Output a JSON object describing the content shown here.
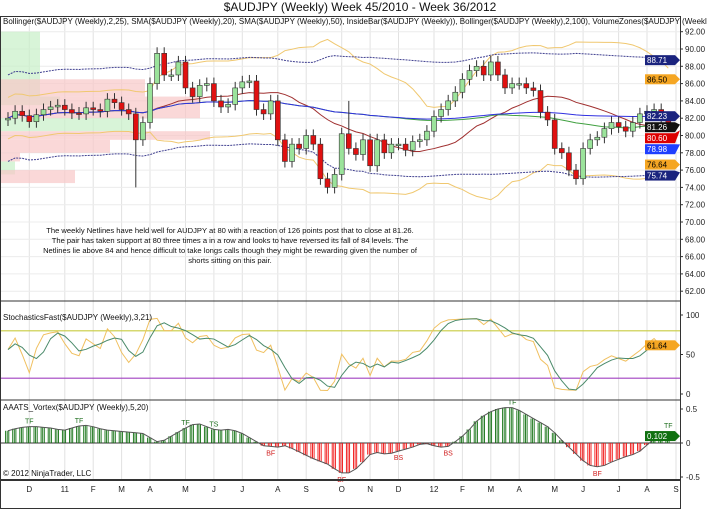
{
  "title": "$AUDJPY (Weekly)  Week 45/2010 - Week 36/2012",
  "price_panel": {
    "legend": "Bollinger($AUDJPY (Weekly),2,25), SMA($AUDJPY (Weekly),20), SMA($AUDJPY (Weekly),50), InsideBar($AUDJPY (Weekly)), Bollinger($AUDJPY (Weekly),2,100), VolumeZones($AUDJPY (Weekl",
    "note": "The weekly Netlines have held well for AUDJPY at 80 with a reaction of 126 points post that to close at 81.26. The pair has taken support at 80 three times a in a row and looks to have reversed its fall of 84 levels. The Netlines lie above 84 and hence difficult to take longs calls though they might be rewarding given the number of shorts sitting on this pair.",
    "y_ticks": [
      "92.00",
      "90.00",
      "88.00",
      "86.00",
      "84.00",
      "82.00",
      "80.00",
      "78.00",
      "76.00",
      "74.00",
      "72.00",
      "70.00",
      "68.00",
      "66.00",
      "64.00",
      "62.00"
    ],
    "markers": [
      {
        "value": 88.71,
        "label": "88.71",
        "color": "#1a237e",
        "text_color": "#ffffff"
      },
      {
        "value": 86.5,
        "label": "86.50",
        "color": "#f5a623",
        "text_color": "#000000"
      },
      {
        "value": 82.23,
        "label": "82.23",
        "color": "#1a237e",
        "text_color": "#ffffff"
      },
      {
        "value": 81.26,
        "label": "81.26",
        "color": "#111111",
        "text_color": "#ffffff"
      },
      {
        "value": 80.6,
        "label": "80.60",
        "color": "#dd0000",
        "text_color": "#ffffff"
      },
      {
        "value": 78.98,
        "label": "78.98",
        "color": "#1f3fff",
        "text_color": "#ffffff"
      },
      {
        "value": 76.64,
        "label": "76.64",
        "color": "#f5a623",
        "text_color": "#000000"
      },
      {
        "value": 75.74,
        "label": "75.74",
        "color": "#1a237e",
        "text_color": "#ffffff"
      }
    ]
  },
  "stoch_panel": {
    "legend": "StochasticsFast($AUDJPY (Weekly),3,21)",
    "y_ticks": [
      "100",
      "50",
      "0"
    ],
    "levels": [
      80,
      20
    ],
    "last_label": "61.64",
    "colors": {
      "k": "#f0c060",
      "d": "#4a8a6a",
      "upper": "#c8cc40",
      "lower": "#a040c0"
    }
  },
  "vortex_panel": {
    "legend": "AAATS_Vortex($AUDJPY (Weekly),5,20)",
    "y_ticks": [
      "0.5",
      "0",
      "-0.5"
    ],
    "last_label": "0.102",
    "copyright": "© 2012 NinjaTrader, LLC",
    "signals": [
      {
        "week": 3,
        "label": "TF",
        "side": "up"
      },
      {
        "week": 10,
        "label": "TF",
        "side": "up"
      },
      {
        "week": 25,
        "label": "TF",
        "side": "up"
      },
      {
        "week": 29,
        "label": "TS",
        "side": "up"
      },
      {
        "week": 37,
        "label": "BF",
        "side": "down"
      },
      {
        "week": 47,
        "label": "BF",
        "side": "down"
      },
      {
        "week": 55,
        "label": "BS",
        "side": "down"
      },
      {
        "week": 62,
        "label": "BS",
        "side": "down"
      },
      {
        "week": 71,
        "label": "TF",
        "side": "up"
      },
      {
        "week": 83,
        "label": "BF",
        "side": "down"
      },
      {
        "week": 93,
        "label": "TF",
        "side": "up"
      }
    ]
  },
  "x_axis": {
    "labels": [
      {
        "week": 3,
        "label": "D"
      },
      {
        "week": 8,
        "label": "11"
      },
      {
        "week": 12,
        "label": "F"
      },
      {
        "week": 16,
        "label": "M"
      },
      {
        "week": 20,
        "label": "A"
      },
      {
        "week": 25,
        "label": "M"
      },
      {
        "week": 29,
        "label": "J"
      },
      {
        "week": 33,
        "label": "J"
      },
      {
        "week": 38,
        "label": "A"
      },
      {
        "week": 42,
        "label": "S"
      },
      {
        "week": 47,
        "label": "O"
      },
      {
        "week": 51,
        "label": "N"
      },
      {
        "week": 55,
        "label": "D"
      },
      {
        "week": 60,
        "label": "12"
      },
      {
        "week": 64,
        "label": "F"
      },
      {
        "week": 68,
        "label": "M"
      },
      {
        "week": 72,
        "label": "A"
      },
      {
        "week": 77,
        "label": "M"
      },
      {
        "week": 81,
        "label": "J"
      },
      {
        "week": 86,
        "label": "J"
      },
      {
        "week": 90,
        "label": "A"
      },
      {
        "week": 95,
        "label": "S"
      }
    ]
  },
  "chart_data": {
    "type": "candlestick",
    "symbol": "$AUDJPY (Weekly)",
    "ylim": [
      62,
      92
    ],
    "first_open": 81.8,
    "close": [
      82.0,
      82.8,
      82.3,
      81.6,
      82.4,
      83.0,
      83.3,
      83.5,
      83.0,
      82.6,
      82.5,
      83.2,
      83.0,
      82.8,
      84.2,
      83.8,
      83.0,
      82.5,
      79.5,
      81.5,
      86.0,
      89.5,
      87.0,
      87.0,
      88.5,
      85.5,
      84.5,
      85.8,
      86.0,
      84.0,
      83.3,
      83.6,
      85.5,
      86.2,
      86.3,
      83.0,
      82.5,
      84.0,
      79.5,
      77.0,
      79.0,
      78.5,
      80.0,
      79.0,
      75.0,
      74.0,
      75.5,
      80.2,
      78.5,
      77.8,
      79.5,
      76.5,
      79.5,
      78.0,
      79.0,
      79.0,
      78.3,
      79.3,
      79.5,
      80.5,
      82.2,
      83.0,
      84.0,
      85.0,
      86.5,
      87.5,
      88.0,
      87.0,
      88.5,
      87.0,
      85.5,
      86.0,
      86.0,
      85.5,
      85.2,
      82.7,
      81.8,
      78.5,
      78.0,
      76.0,
      75.0,
      78.5,
      79.5,
      79.8,
      80.8,
      81.5,
      81.0,
      80.5,
      81.5,
      82.5,
      82.8,
      83.0,
      81.8,
      81.26
    ],
    "vortex": [
      0.18,
      0.21,
      0.23,
      0.24,
      0.24,
      0.23,
      0.22,
      0.2,
      0.19,
      0.22,
      0.25,
      0.26,
      0.24,
      0.21,
      0.19,
      0.18,
      0.17,
      0.16,
      0.15,
      0.14,
      0.08,
      0.02,
      0.04,
      0.1,
      0.16,
      0.22,
      0.27,
      0.28,
      0.24,
      0.2,
      0.19,
      0.2,
      0.18,
      0.14,
      0.08,
      0.02,
      -0.04,
      -0.05,
      -0.06,
      -0.04,
      -0.08,
      -0.13,
      -0.18,
      -0.23,
      -0.27,
      -0.31,
      -0.38,
      -0.44,
      -0.44,
      -0.38,
      -0.28,
      -0.17,
      -0.14,
      -0.16,
      -0.15,
      -0.12,
      -0.09,
      -0.06,
      -0.02,
      -0.01,
      -0.04,
      -0.06,
      -0.05,
      0.02,
      0.1,
      0.2,
      0.32,
      0.4,
      0.46,
      0.5,
      0.52,
      0.52,
      0.48,
      0.42,
      0.36,
      0.3,
      0.24,
      0.15,
      0.04,
      -0.06,
      -0.16,
      -0.26,
      -0.33,
      -0.35,
      -0.33,
      -0.28,
      -0.24,
      -0.2,
      -0.17,
      -0.12,
      -0.03,
      0.06,
      0.11,
      0.102
    ],
    "colors": {
      "up": "#9be39b",
      "down": "#e01010",
      "bb25": "#f0c870",
      "sma20": "#a03030",
      "sma50": "#40a040",
      "sma100": "#3030e0",
      "bb100": "#404090",
      "vortex_up": "#107010",
      "vortex_down": "#f01010"
    }
  }
}
